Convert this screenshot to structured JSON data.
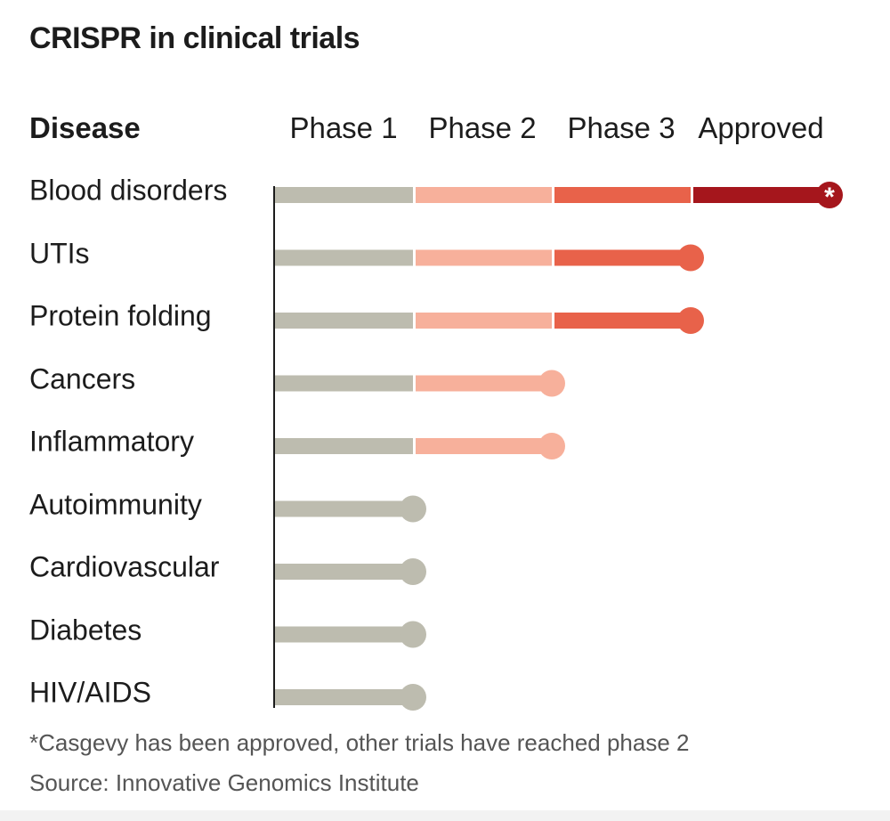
{
  "title": "CRISPR in clinical trials",
  "chart_data": {
    "type": "lollipop-stage",
    "category_header": "Disease",
    "stages": [
      "Phase 1",
      "Phase 2",
      "Phase 3",
      "Approved"
    ],
    "rows": [
      {
        "disease": "Blood disorders",
        "stage": 4,
        "marker": "*"
      },
      {
        "disease": "UTIs",
        "stage": 3
      },
      {
        "disease": "Protein folding",
        "stage": 3
      },
      {
        "disease": "Cancers",
        "stage": 2
      },
      {
        "disease": "Inflammatory",
        "stage": 2
      },
      {
        "disease": "Autoimmunity",
        "stage": 1
      },
      {
        "disease": "Cardiovascular",
        "stage": 1
      },
      {
        "disease": "Diabetes",
        "stage": 1
      },
      {
        "disease": "HIV/AIDS",
        "stage": 1
      }
    ],
    "stage_colors": [
      "#bdbcaf",
      "#f7b09b",
      "#e8624a",
      "#a5161c"
    ],
    "footnote": "*Casgevy has been approved, other trials have reached phase 2",
    "source": "Source: Innovative Genomics Institute"
  }
}
